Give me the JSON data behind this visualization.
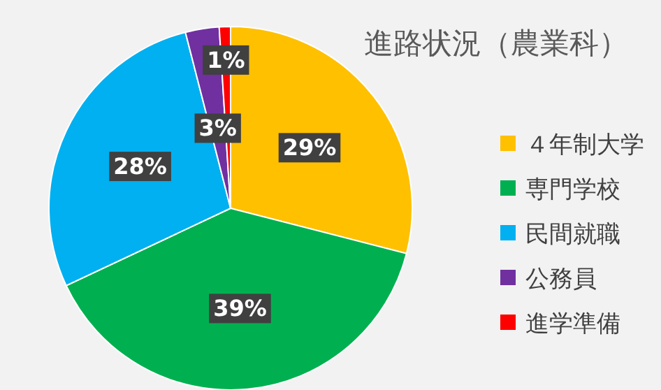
{
  "chart_data": {
    "type": "pie",
    "title": "進路状況（農業科）",
    "categories": [
      "４年制大学",
      "専門学校",
      "民間就職",
      "公務員",
      "進学準備"
    ],
    "values": [
      29,
      39,
      28,
      3,
      1
    ],
    "value_labels": [
      "29%",
      "39%",
      "28%",
      "3%",
      "1%"
    ],
    "colors": [
      "#ffc000",
      "#00b050",
      "#00b0f0",
      "#7030a0",
      "#ff0000"
    ],
    "legend": "right"
  }
}
